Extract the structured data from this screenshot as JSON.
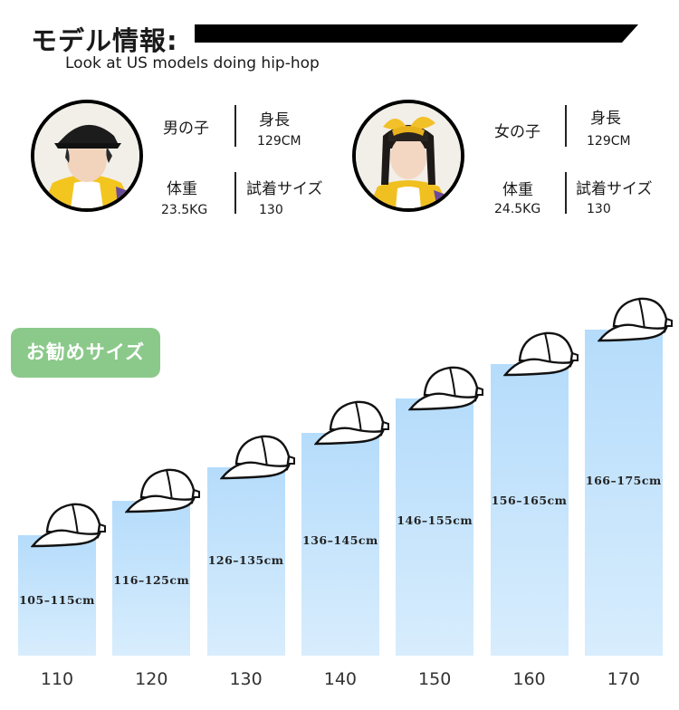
{
  "header": {
    "title": "モデル情報:",
    "subtitle": "Look at US models doing hip-hop"
  },
  "models": [
    {
      "gender": "男の子",
      "height_label": "身長",
      "height_value": "129CM",
      "weight_label": "体重",
      "weight_value": "23.5KG",
      "size_label": "試着サイズ",
      "size_value": "130"
    },
    {
      "gender": "女の子",
      "height_label": "身長",
      "height_value": "129CM",
      "weight_label": "体重",
      "weight_value": "24.5KG",
      "size_label": "試着サイズ",
      "size_value": "130"
    }
  ],
  "recommend_badge": "お勧めサイズ",
  "chart_data": {
    "type": "bar",
    "categories": [
      "110",
      "120",
      "130",
      "140",
      "150",
      "160",
      "170"
    ],
    "range_labels": [
      "105–115cm",
      "116–125cm",
      "126–135cm",
      "136–145cm",
      "146–155cm",
      "156–165cm",
      "166–175cm"
    ],
    "values_cm_upper": [
      115,
      125,
      135,
      145,
      155,
      165,
      175
    ],
    "ylim": [
      80,
      175
    ]
  },
  "colors": {
    "bar_top": "#b5dcfb",
    "bar_bottom": "#d8edfd",
    "badge": "#8bc98a"
  },
  "icons": {
    "cap": "baseball-cap-icon"
  }
}
